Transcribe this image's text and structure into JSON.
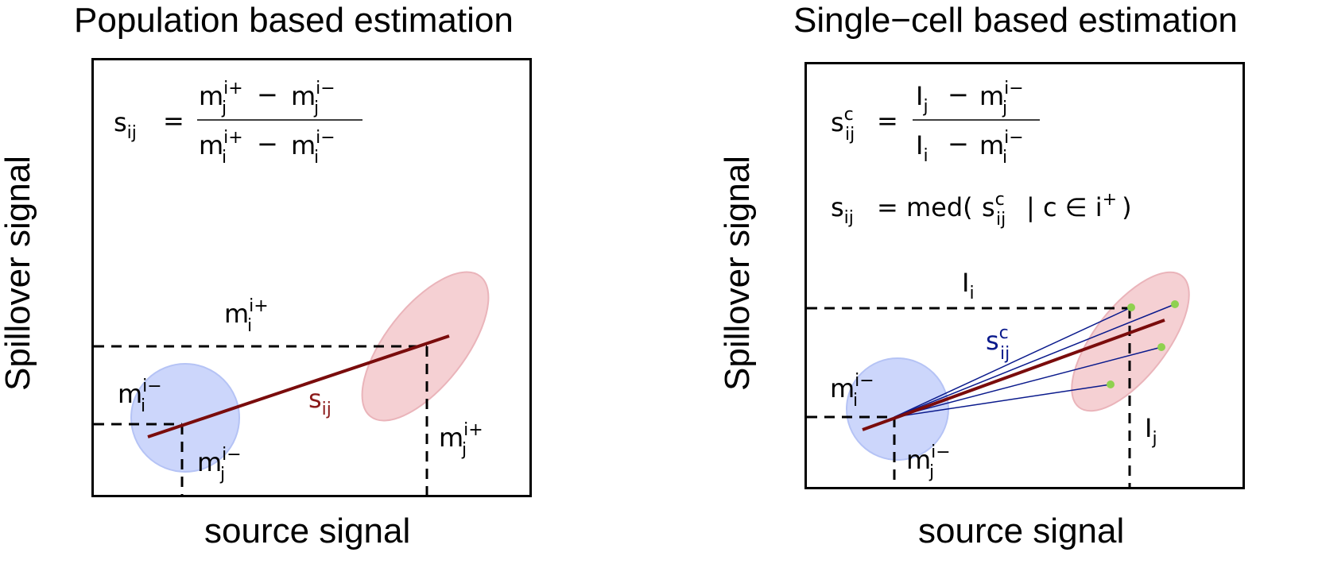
{
  "left_panel": {
    "title": "Population based estimation",
    "xlabel": "source signal",
    "ylabel": "Spillover signal",
    "formula": {
      "lhs": "s",
      "lhs_sub": "ij",
      "eq": "=",
      "num_a": "m",
      "num_a_sup": "i+",
      "num_a_sub": "j",
      "minus": "−",
      "num_b": "m",
      "num_b_sup": "i−",
      "num_b_sub": "j",
      "den_a": "m",
      "den_a_sup": "i+",
      "den_a_sub": "i",
      "den_b": "m",
      "den_b_sup": "i−",
      "den_b_sub": "i"
    },
    "labels": {
      "mi_plus": {
        "base": "m",
        "sup": "i+",
        "sub": "i"
      },
      "mi_minus": {
        "base": "m",
        "sup": "i−",
        "sub": "i"
      },
      "mj_minus": {
        "base": "m",
        "sup": "i−",
        "sub": "j"
      },
      "mj_plus": {
        "base": "m",
        "sup": "i+",
        "sub": "j"
      },
      "slope": {
        "base": "s",
        "sub": "ij"
      }
    },
    "colors": {
      "negative_population": "#ccd6fb",
      "positive_population": "#f5d0d3",
      "slope_line": "#7a0c0c",
      "slope_label": "#8b1a1a"
    }
  },
  "right_panel": {
    "title": "Single−cell based estimation",
    "xlabel": "source signal",
    "ylabel": "Spillover signal",
    "formula1": {
      "lhs": "s",
      "lhs_sup": "c",
      "lhs_sub": "ij",
      "eq": "=",
      "num_a": "I",
      "num_a_sub": "j",
      "minus": "−",
      "num_b": "m",
      "num_b_sup": "i−",
      "num_b_sub": "j",
      "den_a": "I",
      "den_a_sub": "i",
      "den_b": "m",
      "den_b_sup": "i−",
      "den_b_sub": "i"
    },
    "formula2": {
      "lhs": "s",
      "lhs_sub": "ij",
      "rhs_prefix": "= med(",
      "inner": "s",
      "inner_sup": "c",
      "inner_sub": "ij",
      "cond": "| c ∈ i",
      "cond_sup": "+",
      "close": ")"
    },
    "labels": {
      "Ii": {
        "base": "I",
        "sub": "i"
      },
      "Ij": {
        "base": "I",
        "sub": "j"
      },
      "mi_minus": {
        "base": "m",
        "sup": "i−",
        "sub": "i"
      },
      "mj_minus": {
        "base": "m",
        "sup": "i−",
        "sub": "j"
      },
      "slope_c": {
        "base": "s",
        "sup": "c",
        "sub": "ij"
      }
    },
    "colors": {
      "negative_population": "#ccd6fb",
      "positive_population": "#f5d0d3",
      "slope_line": "#7a0c0c",
      "cell_lines": "#0a1a8c",
      "cell_points": "#8fd14f",
      "slope_label": "#0a1a8c"
    }
  }
}
